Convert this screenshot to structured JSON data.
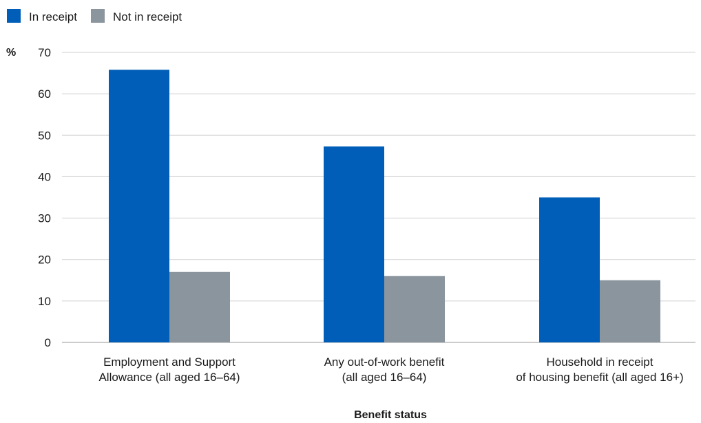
{
  "chart_data": {
    "type": "bar",
    "categories": [
      [
        "Employment and Support",
        "Allowance (all aged 16–64)"
      ],
      [
        "Any out-of-work benefit",
        "(all aged 16–64)"
      ],
      [
        "Household in receipt",
        "of housing benefit (all aged 16+)"
      ]
    ],
    "series": [
      {
        "name": "In receipt",
        "color": "#005eb8",
        "values": [
          65.8,
          47.3,
          35.0
        ]
      },
      {
        "name": "Not in receipt",
        "color": "#8a959e",
        "values": [
          17.0,
          16.0,
          15.0
        ]
      }
    ],
    "xlabel": "Benefit status",
    "ylabel": "%",
    "ylim": [
      0,
      70
    ],
    "yticks": [
      0,
      10,
      20,
      30,
      40,
      50,
      60,
      70
    ],
    "grid": true,
    "legend_position": "top-left"
  }
}
